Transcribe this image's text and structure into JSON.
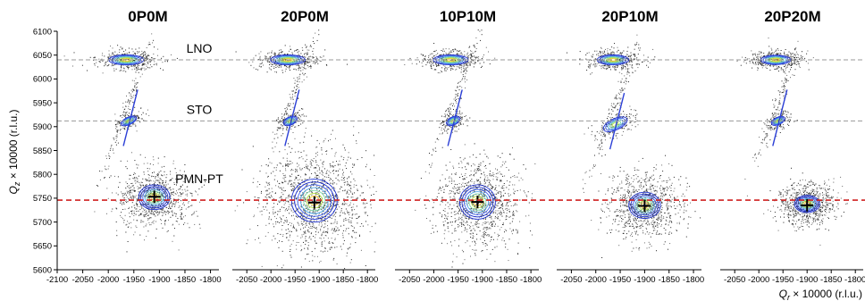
{
  "chart_data": {
    "type": "heatmap",
    "description_type": "reciprocal space maps (density contour plots)",
    "ylabel_main": "Q",
    "ylabel_sub": "z",
    "ylabel_rest": " × 10000 (r.l.u.)",
    "xlabel_main": "Q",
    "xlabel_sub": "r",
    "xlabel_rest": " × 10000 (r.l.u.)",
    "ylim": [
      5600,
      6100
    ],
    "yticks": [
      5600,
      5650,
      5700,
      5750,
      5800,
      5850,
      5900,
      5950,
      6000,
      6050,
      6100
    ],
    "reference_lines": [
      {
        "label": "LNO",
        "qz": 6040,
        "color": "#9a9a9a",
        "style": "dashed"
      },
      {
        "label": "STO",
        "qz": 5912,
        "color": "#9a9a9a",
        "style": "dashed"
      },
      {
        "label": "PMN-PT",
        "qz": 5746,
        "color": "#d02020",
        "style": "dashed"
      }
    ],
    "panels": [
      {
        "title": "0P0M",
        "xlim": [
          -2100,
          -1780
        ],
        "xticks": [
          -2100,
          -2050,
          -2000,
          -1950,
          -1900,
          -1850,
          -1800
        ],
        "peaks": {
          "LNO": {
            "qx": -1965,
            "qz": 6040,
            "rx": 55,
            "rz": 14
          },
          "STO": {
            "qx": -1960,
            "qz": 5912,
            "rx": 22,
            "rz": 9
          },
          "PMN-PT": {
            "qx": -1910,
            "qz": 5752,
            "rx": 68,
            "rz": 52
          }
        },
        "cross": {
          "qx": -1910,
          "qz": 5753
        }
      },
      {
        "title": "20P0M",
        "xlim": [
          -2080,
          -1780
        ],
        "xticks": [
          -2050,
          -2000,
          -1950,
          -1900,
          -1850,
          -1800
        ],
        "peaks": {
          "LNO": {
            "qx": -1965,
            "qz": 6040,
            "rx": 58,
            "rz": 14
          },
          "STO": {
            "qx": -1960,
            "qz": 5912,
            "rx": 20,
            "rz": 10
          },
          "PMN-PT": {
            "qx": -1910,
            "qz": 5745,
            "rx": 105,
            "rz": 90
          }
        },
        "cross": {
          "qx": -1910,
          "qz": 5741
        }
      },
      {
        "title": "10P10M",
        "xlim": [
          -2080,
          -1780
        ],
        "xticks": [
          -2050,
          -2000,
          -1950,
          -1900,
          -1850,
          -1800
        ],
        "peaks": {
          "LNO": {
            "qx": -1965,
            "qz": 6040,
            "rx": 58,
            "rz": 14
          },
          "STO": {
            "qx": -1960,
            "qz": 5912,
            "rx": 20,
            "rz": 10
          },
          "PMN-PT": {
            "qx": -1910,
            "qz": 5742,
            "rx": 82,
            "rz": 72
          }
        },
        "cross": {
          "qx": -1910,
          "qz": 5742
        }
      },
      {
        "title": "20P10M",
        "xlim": [
          -2080,
          -1780
        ],
        "xticks": [
          -2050,
          -2000,
          -1950,
          -1900,
          -1850,
          -1800
        ],
        "peaks": {
          "LNO": {
            "qx": -1965,
            "qz": 6040,
            "rx": 52,
            "rz": 14
          },
          "STO": {
            "qx": -1960,
            "qz": 5905,
            "rx": 35,
            "rz": 14
          },
          "PMN-PT": {
            "qx": -1900,
            "qz": 5735,
            "rx": 72,
            "rz": 55
          }
        },
        "cross": {
          "qx": -1900,
          "qz": 5734
        }
      },
      {
        "title": "20P20M",
        "xlim": [
          -2080,
          -1780
        ],
        "xticks": [
          -2050,
          -2000,
          -1950,
          -1900,
          -1850,
          -1800
        ],
        "peaks": {
          "LNO": {
            "qx": -1965,
            "qz": 6040,
            "rx": 50,
            "rz": 13
          },
          "STO": {
            "qx": -1960,
            "qz": 5912,
            "rx": 20,
            "rz": 9
          },
          "PMN-PT": {
            "qx": -1900,
            "qz": 5738,
            "rx": 58,
            "rz": 36
          }
        },
        "cross": {
          "qx": -1900,
          "qz": 5735
        }
      }
    ],
    "contour_colors": [
      "#1b2fd0",
      "#3a5ef0",
      "#4fa8e8",
      "#7ad6a8",
      "#b8e84a",
      "#ffd23a"
    ]
  }
}
